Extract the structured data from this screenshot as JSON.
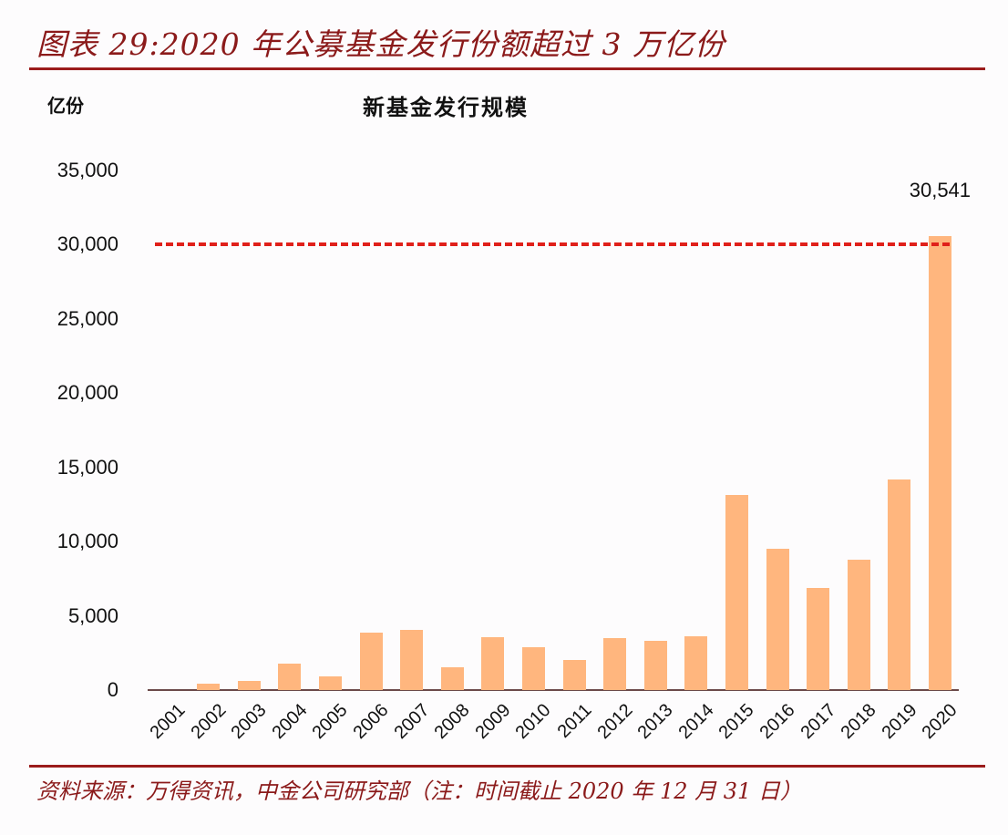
{
  "figure": {
    "title": "图表 29:2020 年公募基金发行份额超过 3 万亿份",
    "source": "资料来源：万得资讯，中金公司研究部（注：时间截止 2020 年 12 月 31 日）",
    "accent_color": "#8b1a1a"
  },
  "chart_data": {
    "type": "bar",
    "title": "新基金发行规模",
    "ylabel": "亿份",
    "xlabel": "",
    "categories": [
      "2001",
      "2002",
      "2003",
      "2004",
      "2005",
      "2006",
      "2007",
      "2008",
      "2009",
      "2010",
      "2011",
      "2012",
      "2013",
      "2014",
      "2015",
      "2016",
      "2017",
      "2018",
      "2019",
      "2020"
    ],
    "values": [
      0,
      400,
      600,
      1750,
      950,
      3870,
      4050,
      1530,
      3560,
      2880,
      2020,
      3500,
      3330,
      3600,
      13100,
      9500,
      6850,
      8800,
      14200,
      30541
    ],
    "yticks": [
      "0",
      "5,000",
      "10,000",
      "15,000",
      "20,000",
      "25,000",
      "30,000",
      "35,000"
    ],
    "ylim": [
      0,
      35000
    ],
    "grid": false,
    "legend": null,
    "bar_color": "#ffb67e",
    "annotations": [
      {
        "text": "30,541",
        "category": "2020"
      },
      {
        "type": "reference_line",
        "y": 30000,
        "style": "dashed",
        "color": "#e0201a"
      }
    ]
  }
}
